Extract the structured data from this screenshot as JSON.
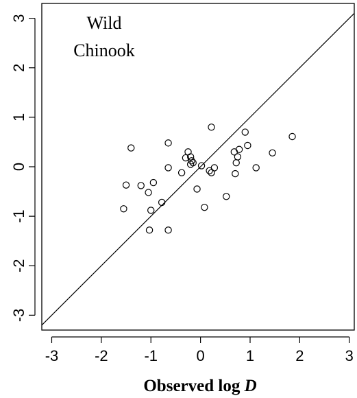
{
  "chart_data": {
    "type": "scatter",
    "title": "",
    "annotation_lines": [
      "Wild",
      "Chinook"
    ],
    "xlabel_prefix": "Observed log ",
    "xlabel_var": "D",
    "ylabel": "",
    "xlim": [
      -3.2,
      3.1
    ],
    "ylim": [
      -3.3,
      3.3
    ],
    "xticks": [
      -3,
      -2,
      -1,
      0,
      1,
      2,
      3
    ],
    "yticks": [
      -3,
      -2,
      -1,
      0,
      1,
      2,
      3
    ],
    "reference_line": "y = x",
    "grid": false,
    "marker": "open-circle",
    "points": [
      {
        "x": -1.4,
        "y": 0.38
      },
      {
        "x": -0.65,
        "y": 0.48
      },
      {
        "x": 0.22,
        "y": 0.8
      },
      {
        "x": 0.9,
        "y": 0.7
      },
      {
        "x": 1.85,
        "y": 0.61
      },
      {
        "x": 0.95,
        "y": 0.43
      },
      {
        "x": 0.78,
        "y": 0.35
      },
      {
        "x": 0.68,
        "y": 0.3
      },
      {
        "x": 1.45,
        "y": 0.28
      },
      {
        "x": -0.25,
        "y": 0.3
      },
      {
        "x": -0.3,
        "y": 0.18
      },
      {
        "x": -0.2,
        "y": 0.2
      },
      {
        "x": -0.18,
        "y": 0.12
      },
      {
        "x": -0.2,
        "y": 0.05
      },
      {
        "x": -0.15,
        "y": 0.08
      },
      {
        "x": 0.75,
        "y": 0.2
      },
      {
        "x": 0.72,
        "y": 0.08
      },
      {
        "x": 0.02,
        "y": 0.02
      },
      {
        "x": 0.28,
        "y": -0.02
      },
      {
        "x": 1.12,
        "y": -0.02
      },
      {
        "x": -0.65,
        "y": -0.02
      },
      {
        "x": -0.38,
        "y": -0.12
      },
      {
        "x": 0.18,
        "y": -0.08
      },
      {
        "x": 0.22,
        "y": -0.12
      },
      {
        "x": 0.7,
        "y": -0.14
      },
      {
        "x": -0.95,
        "y": -0.32
      },
      {
        "x": -1.2,
        "y": -0.38
      },
      {
        "x": -1.5,
        "y": -0.37
      },
      {
        "x": -0.07,
        "y": -0.45
      },
      {
        "x": -1.05,
        "y": -0.52
      },
      {
        "x": 0.52,
        "y": -0.6
      },
      {
        "x": -0.78,
        "y": -0.72
      },
      {
        "x": 0.08,
        "y": -0.82
      },
      {
        "x": -1.55,
        "y": -0.85
      },
      {
        "x": -1.0,
        "y": -0.88
      },
      {
        "x": -1.03,
        "y": -1.28
      },
      {
        "x": -0.65,
        "y": -1.28
      }
    ]
  }
}
